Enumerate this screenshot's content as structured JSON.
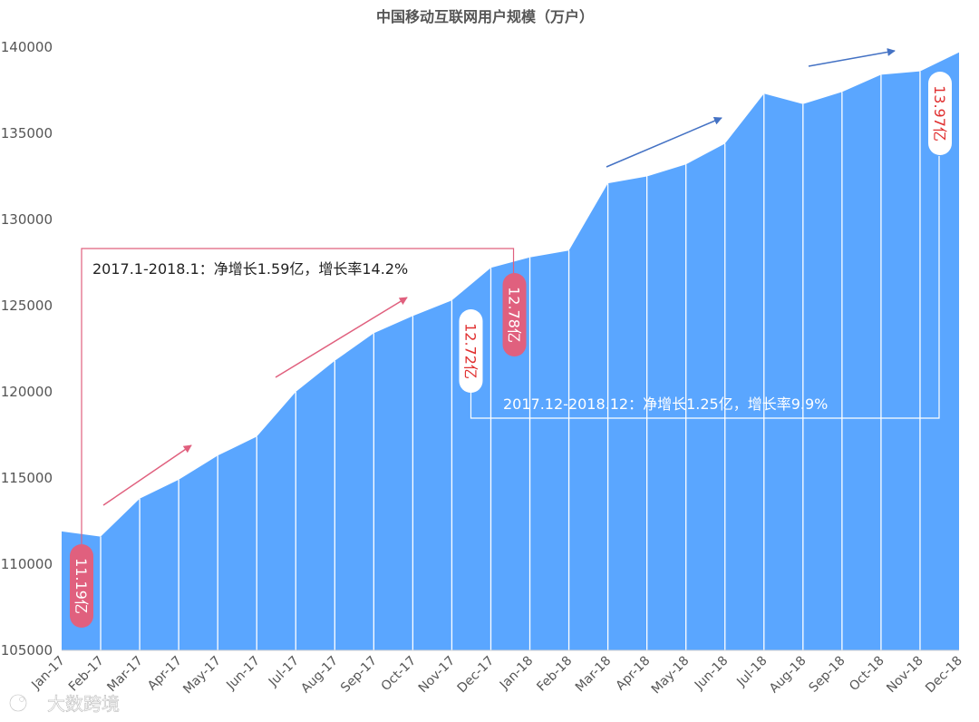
{
  "chart_data": {
    "type": "area",
    "title": "中国移动互联网用户规模（万户）",
    "xlabel": "",
    "ylabel": "",
    "ylim": [
      105000,
      140000
    ],
    "yticks": [
      105000,
      110000,
      115000,
      120000,
      125000,
      130000,
      135000,
      140000
    ],
    "ytick_labels": [
      "105000",
      "110000",
      "115000",
      "120000",
      "125000",
      "130000",
      "135000",
      "140000"
    ],
    "grid": false,
    "categories": [
      "Jan-17",
      "Feb-17",
      "Mar-17",
      "Apr-17",
      "May-17",
      "Jun-17",
      "Jul-17",
      "Aug-17",
      "Sep-17",
      "Oct-17",
      "Nov-17",
      "Dec-17",
      "Jan-18",
      "Feb-18",
      "Mar-18",
      "Apr-18",
      "May-18",
      "Jun-18",
      "Jul-18",
      "Aug-18",
      "Sep-18",
      "Oct-18",
      "Nov-18",
      "Dec-18"
    ],
    "values": [
      111900,
      111600,
      113800,
      114900,
      116300,
      117400,
      120000,
      121800,
      123400,
      124400,
      125300,
      127200,
      127800,
      128200,
      132100,
      132500,
      133200,
      134400,
      137300,
      136700,
      137400,
      138400,
      138600,
      139700
    ],
    "colors": {
      "area": "#5aa6ff",
      "divider": "#ffffff",
      "pink": "#e0607e",
      "blue_arrow": "#4472c4",
      "white_bracket": "#ffffff"
    },
    "annotations": {
      "labels": [
        {
          "text": "11.19亿",
          "category": "Jan-17",
          "style": "pink"
        },
        {
          "text": "12.72亿",
          "category": "Dec-17",
          "style": "white"
        },
        {
          "text": "12.78亿",
          "category": "Jan-18",
          "style": "pink"
        },
        {
          "text": "13.97亿",
          "category": "Dec-18",
          "style": "white"
        }
      ],
      "growth_2017": {
        "text": "2017.1-2018.1：净增长1.59亿，增长率14.2%",
        "from": "Jan-17",
        "to": "Jan-18"
      },
      "growth_2018": {
        "text": "2017.12-2018.12：净增长1.25亿，增长率9.9%",
        "from": "Dec-17",
        "to": "Dec-18"
      }
    }
  },
  "watermark": {
    "icon": "brand-logo-icon",
    "text": "大数跨境"
  }
}
